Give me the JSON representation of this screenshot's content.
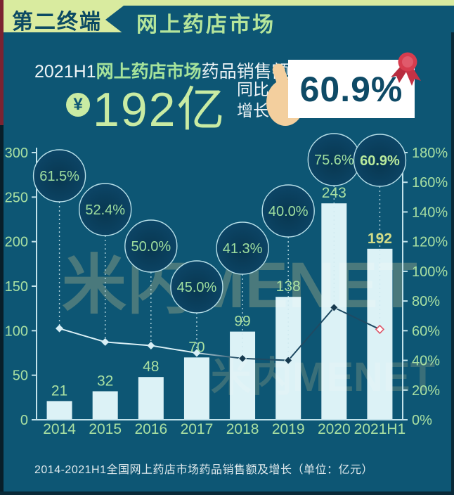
{
  "header": {
    "badge": "第二终端",
    "title": "网上药店市场"
  },
  "highlight": {
    "line1_prefix": "2021H1",
    "line1_market": "网上药店市场",
    "line1_suffix": "药品销售额达",
    "yen_symbol": "¥",
    "amount": "192亿",
    "growth_word_1": "同比",
    "growth_word_2": "增长",
    "growth_value": "60.9%"
  },
  "chart_data": {
    "type": "bar+line",
    "categories": [
      "2014",
      "2015",
      "2016",
      "2017",
      "2018",
      "2019",
      "2020",
      "2021H1"
    ],
    "series": [
      {
        "name": "药品销售额",
        "type": "bar",
        "axis": "left",
        "unit": "亿元",
        "values": [
          21,
          32,
          48,
          70,
          99,
          138,
          243,
          192
        ]
      },
      {
        "name": "同比增长",
        "type": "line",
        "axis": "right",
        "unit": "%",
        "values": [
          61.5,
          52.4,
          50.0,
          45.0,
          41.3,
          40.0,
          75.6,
          60.9
        ]
      }
    ],
    "bar_labels": [
      "21",
      "32",
      "48",
      "70",
      "99",
      "138",
      "243",
      "192"
    ],
    "growth_labels": [
      "61.5%",
      "52.4%",
      "50.0%",
      "45.0%",
      "41.3%",
      "40.0%",
      "75.6%",
      "60.9%"
    ],
    "left_axis": {
      "min": 0,
      "max": 300,
      "step": 50,
      "ticks": [
        "300",
        "250",
        "200",
        "150",
        "100",
        "50",
        "0"
      ]
    },
    "right_axis": {
      "min": 0,
      "max": 180,
      "step": 20,
      "ticks": [
        "180%",
        "160%",
        "140%",
        "120%",
        "100%",
        "80%",
        "60%",
        "40%",
        "20%",
        "0%"
      ]
    },
    "legend_position": "none",
    "grid": false,
    "watermark": "米内MENET",
    "caption": "2014-2021H1全国网上药店市场药品销售额及增长（单位：亿元）"
  },
  "colors": {
    "background": "#0d5674",
    "header_ribbon": "#d9eb9f",
    "accent_green": "#a9e0a2",
    "bright_green": "#c9eba3",
    "bar_fill": "#dcf2f6",
    "circle_fill": "#0a3f5c",
    "axis": "#c2e2ea",
    "highlight_value_yellow": "#d3dc87",
    "medal_red": "#d63c4e",
    "line_dark": "#1e4a63",
    "line_light": "#d9eff5",
    "last_marker_red": "#dd5568"
  }
}
